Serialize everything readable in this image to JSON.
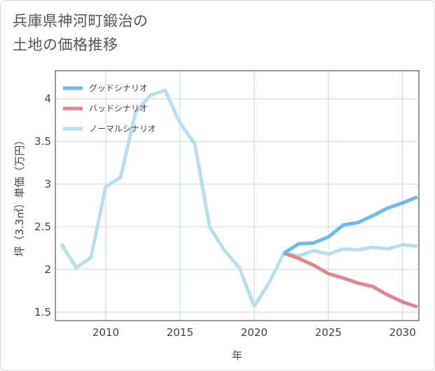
{
  "title_line1": "兵庫県神河町鍛治の",
  "title_line2": "土地の価格推移",
  "chart_data": {
    "type": "line",
    "title": "兵庫県神河町鍛治の土地の価格推移",
    "xlabel": "年",
    "ylabel": "坪（3.3㎡）単価（万円）",
    "xlim": [
      2006.6,
      2031.1
    ],
    "ylim": [
      1.4,
      4.33
    ],
    "xticks": [
      2010,
      2015,
      2020,
      2025,
      2030
    ],
    "yticks": [
      1.5,
      2,
      2.5,
      3,
      3.5,
      4
    ],
    "grid": true,
    "legend_position": "top-left",
    "series": [
      {
        "name": "グッドシナリオ",
        "color": "#6fb9ef",
        "x": [
          2022,
          2023,
          2024,
          2025,
          2026,
          2027,
          2028,
          2029,
          2030,
          2031
        ],
        "y": [
          2.19,
          2.3,
          2.31,
          2.38,
          2.52,
          2.55,
          2.63,
          2.72,
          2.78,
          2.85
        ]
      },
      {
        "name": "バッドシナリオ",
        "color": "#e0868f",
        "x": [
          2022,
          2023,
          2024,
          2025,
          2026,
          2027,
          2028,
          2029,
          2030,
          2031
        ],
        "y": [
          2.19,
          2.13,
          2.05,
          1.95,
          1.9,
          1.84,
          1.8,
          1.7,
          1.62,
          1.56
        ]
      },
      {
        "name": "ノーマルシナリオ",
        "color": "#b8deee",
        "x": [
          2007,
          2008,
          2009,
          2010,
          2011,
          2012,
          2013,
          2014,
          2015,
          2016,
          2017,
          2018,
          2019,
          2020,
          2021,
          2022,
          2023,
          2024,
          2025,
          2026,
          2027,
          2028,
          2029,
          2030,
          2031
        ],
        "y": [
          2.3,
          2.02,
          2.14,
          2.97,
          3.08,
          3.84,
          4.04,
          4.1,
          3.72,
          3.47,
          2.5,
          2.22,
          2.02,
          1.57,
          1.84,
          2.19,
          2.16,
          2.22,
          2.18,
          2.24,
          2.23,
          2.26,
          2.24,
          2.29,
          2.27
        ]
      }
    ]
  }
}
